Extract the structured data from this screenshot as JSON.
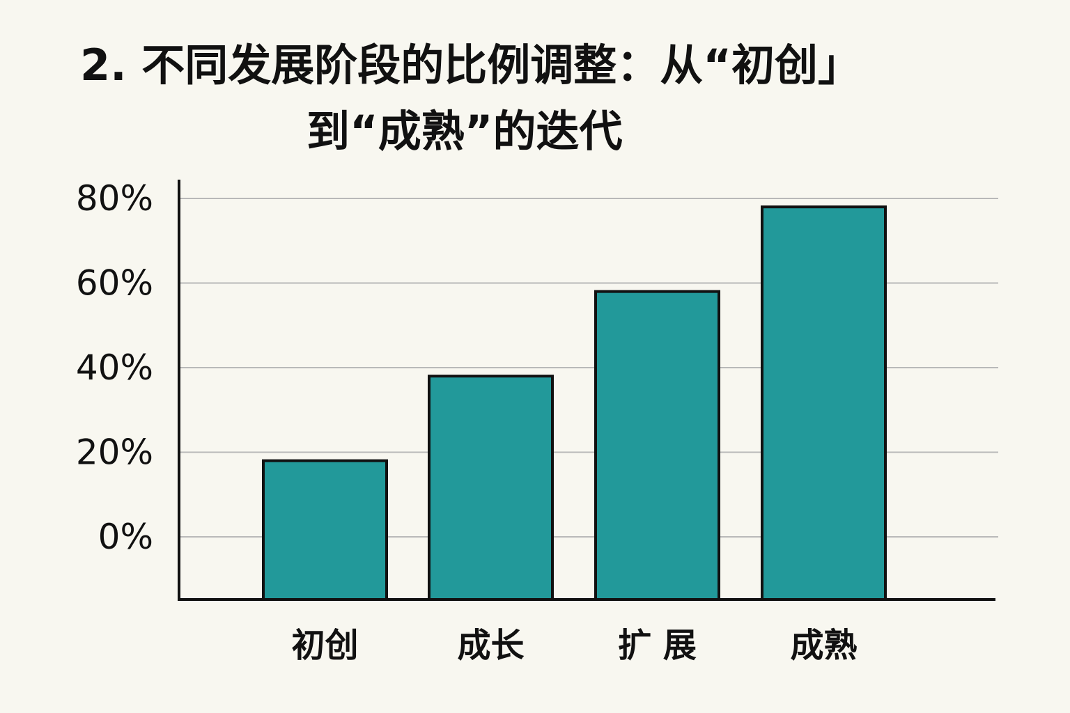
{
  "chart_data": {
    "type": "bar",
    "title_lines": [
      "2. 不同发展阶段的比例调整：从“初创」",
      "到“成熟”的迭代"
    ],
    "categories": [
      "初创",
      "成长",
      "扩 展",
      "成熟"
    ],
    "values": [
      18,
      38,
      58,
      78
    ],
    "ylim": [
      0,
      80
    ],
    "yticks": [
      0,
      20,
      40,
      60,
      80
    ],
    "ytick_labels": [
      "0%",
      "20%",
      "40%",
      "60%",
      "80%"
    ],
    "xlabel": "",
    "ylabel": "",
    "grid": true,
    "legend": "none",
    "colors": {
      "bar": "#22999a",
      "bar_outline": "#111111",
      "grid": "#b9b9b9",
      "axis": "#111111",
      "background": "#f8f7f0"
    }
  }
}
